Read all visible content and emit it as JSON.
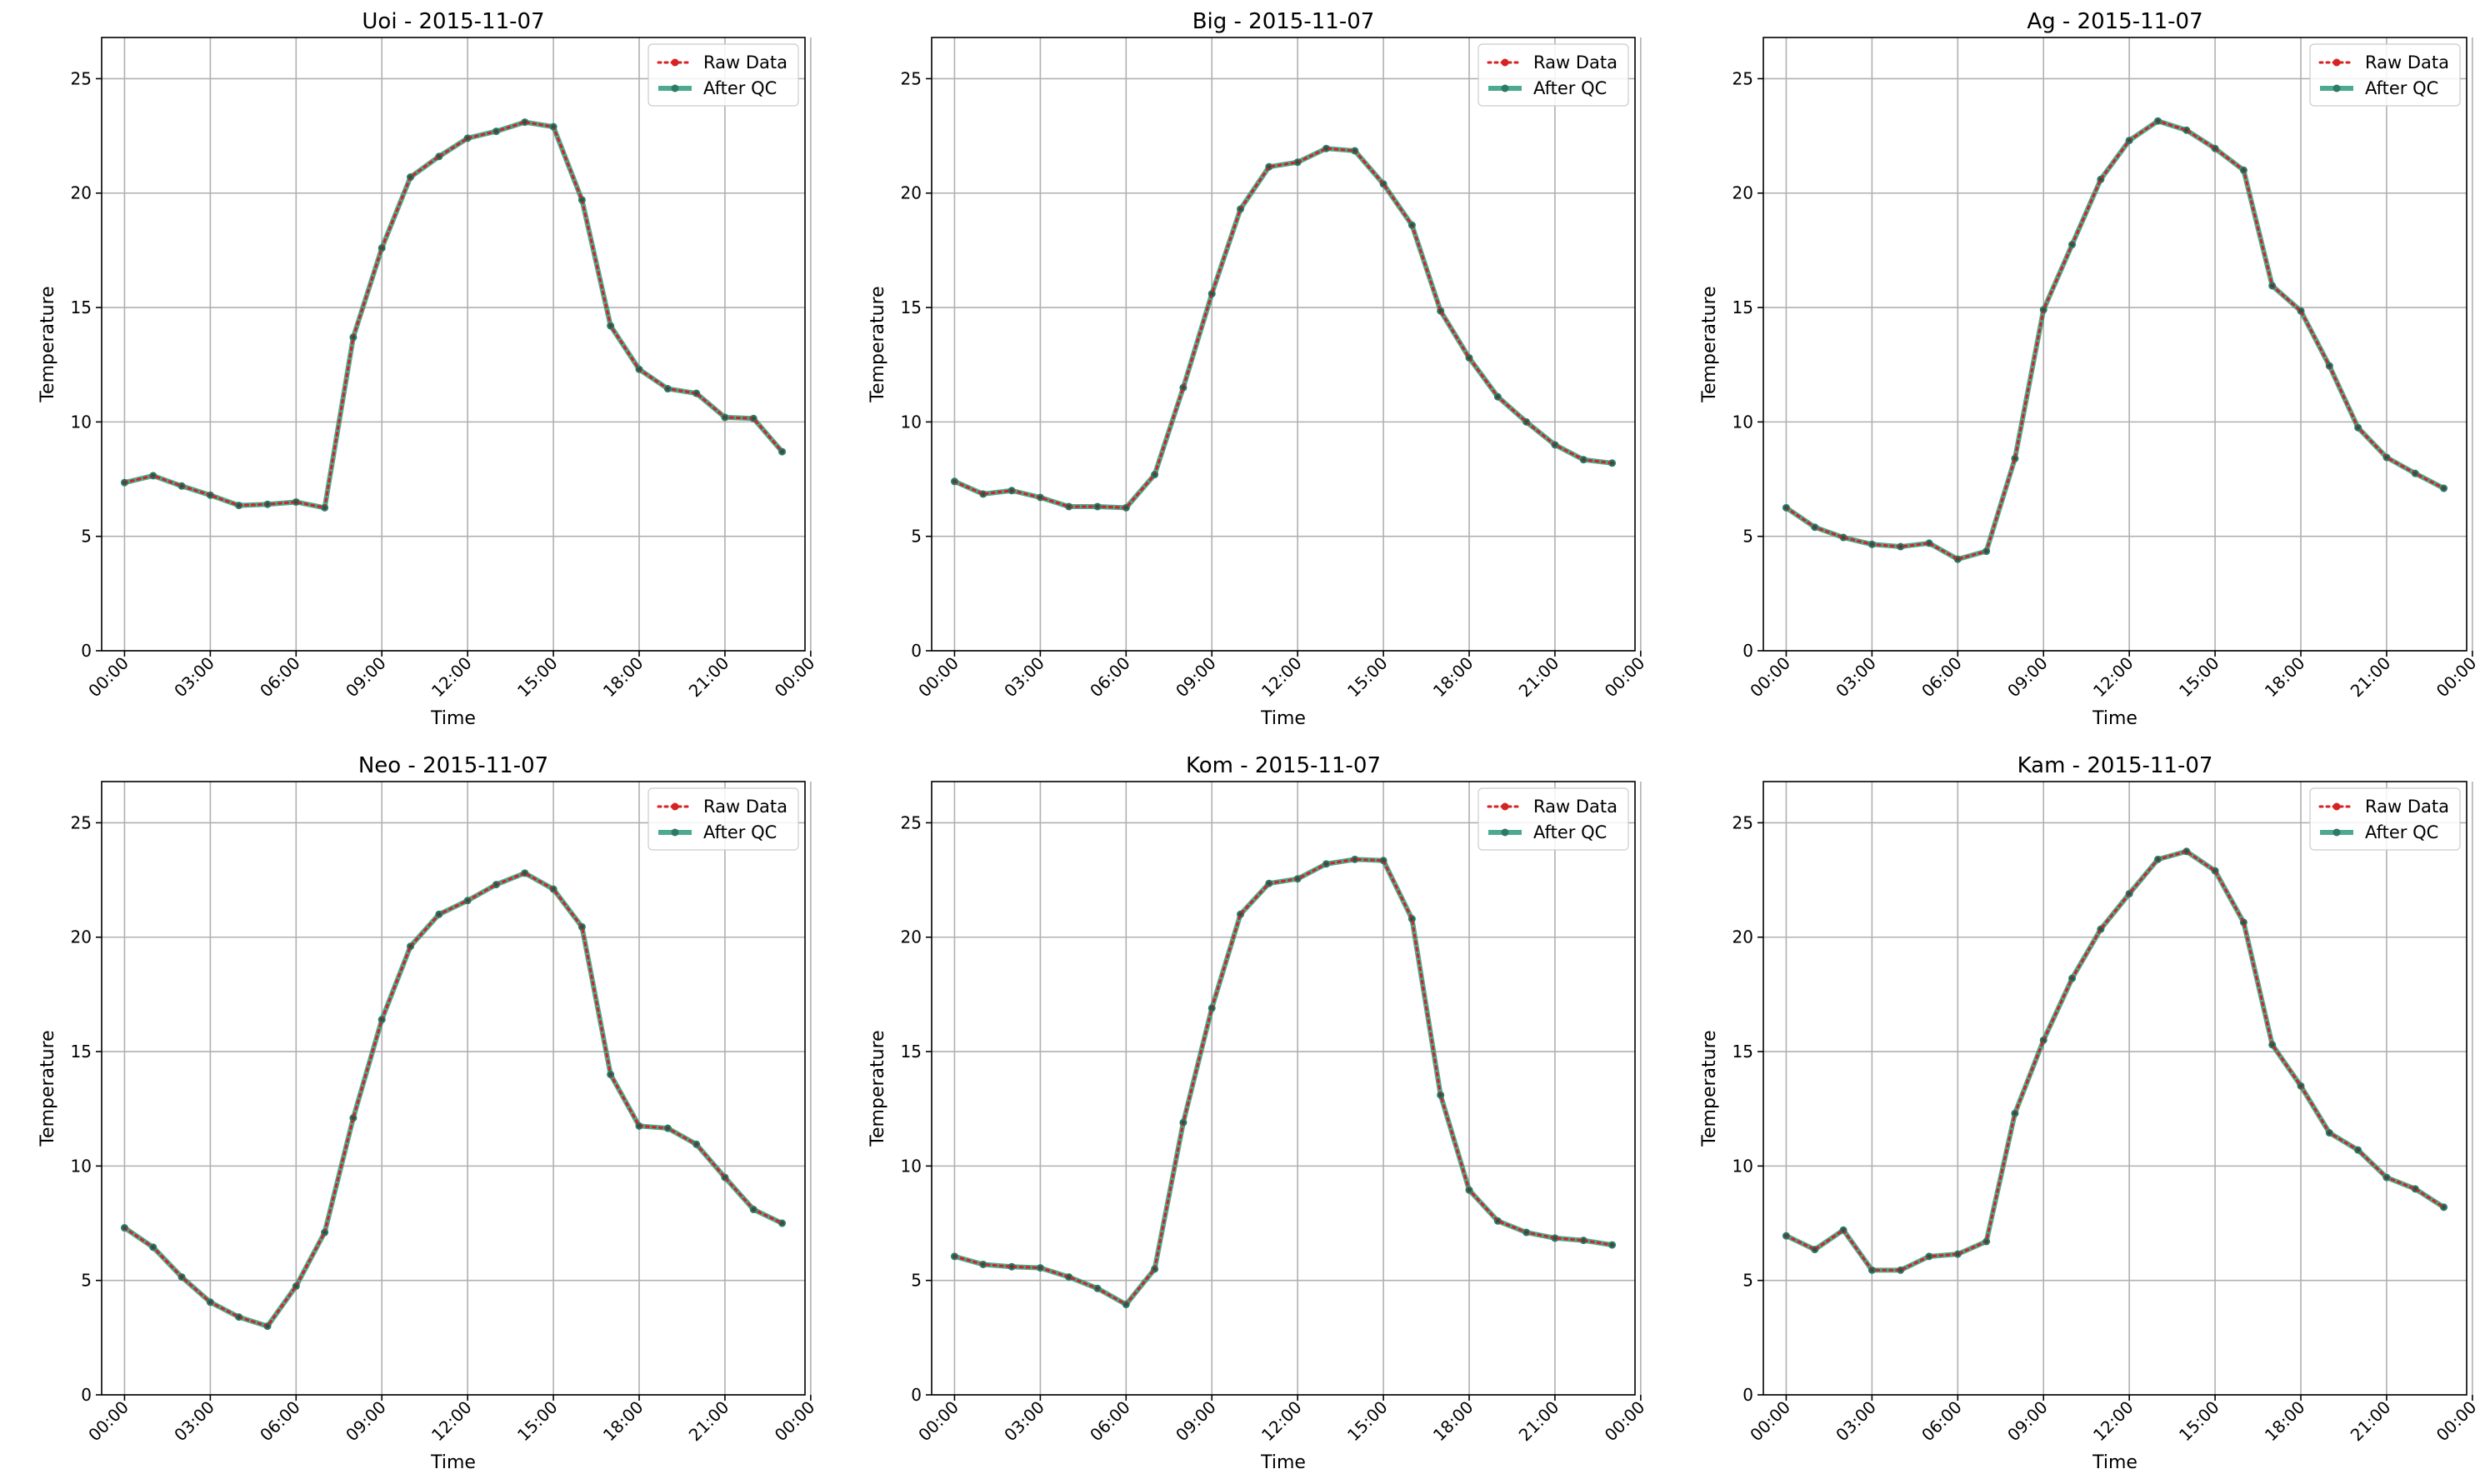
{
  "chart_data": [
    {
      "type": "line",
      "title": "Uoi - 2015-11-07",
      "xlabel": "Time",
      "ylabel": "Temperature",
      "ylim": [
        0,
        26.8
      ],
      "yticks": [
        0,
        5,
        10,
        15,
        20,
        25
      ],
      "xlim": [
        -0.8,
        23.8
      ],
      "xticks": [
        "00:00",
        "03:00",
        "06:00",
        "09:00",
        "12:00",
        "15:00",
        "18:00",
        "21:00",
        "00:00"
      ],
      "grid": true,
      "legend_position": "top-right",
      "x": [
        0,
        1,
        2,
        3,
        4,
        5,
        6,
        7,
        8,
        9,
        10,
        11,
        12,
        13,
        14,
        15,
        16,
        17,
        18,
        19,
        20,
        21,
        22,
        23
      ],
      "series": [
        {
          "name": "Raw Data",
          "style": "dotted-red",
          "values": [
            7.35,
            7.65,
            7.2,
            6.8,
            6.35,
            6.4,
            6.5,
            6.25,
            13.7,
            17.6,
            20.7,
            21.6,
            22.4,
            22.7,
            23.1,
            22.9,
            19.7,
            14.2,
            12.3,
            11.45,
            11.25,
            10.2,
            10.15,
            8.7
          ]
        },
        {
          "name": "After QC",
          "style": "solid-green",
          "values": [
            7.35,
            7.65,
            7.2,
            6.8,
            6.35,
            6.4,
            6.5,
            6.25,
            13.7,
            17.6,
            20.7,
            21.6,
            22.4,
            22.7,
            23.1,
            22.9,
            19.7,
            14.2,
            12.3,
            11.45,
            11.25,
            10.2,
            10.15,
            8.7
          ]
        }
      ]
    },
    {
      "type": "line",
      "title": "Big - 2015-11-07",
      "xlabel": "Time",
      "ylabel": "Temperature",
      "ylim": [
        0,
        26.8
      ],
      "yticks": [
        0,
        5,
        10,
        15,
        20,
        25
      ],
      "xlim": [
        -0.8,
        23.8
      ],
      "xticks": [
        "00:00",
        "03:00",
        "06:00",
        "09:00",
        "12:00",
        "15:00",
        "18:00",
        "21:00",
        "00:00"
      ],
      "grid": true,
      "legend_position": "top-right",
      "x": [
        0,
        1,
        2,
        3,
        4,
        5,
        6,
        7,
        8,
        9,
        10,
        11,
        12,
        13,
        14,
        15,
        16,
        17,
        18,
        19,
        20,
        21,
        22,
        23
      ],
      "series": [
        {
          "name": "Raw Data",
          "style": "dotted-red",
          "values": [
            7.4,
            6.85,
            7.0,
            6.7,
            6.3,
            6.3,
            6.25,
            7.7,
            11.5,
            15.6,
            19.3,
            21.15,
            21.35,
            21.95,
            21.85,
            20.4,
            18.6,
            14.85,
            12.8,
            11.1,
            10.0,
            9.0,
            8.35,
            8.2
          ]
        },
        {
          "name": "After QC",
          "style": "solid-green",
          "values": [
            7.4,
            6.85,
            7.0,
            6.7,
            6.3,
            6.3,
            6.25,
            7.7,
            11.5,
            15.6,
            19.3,
            21.15,
            21.35,
            21.95,
            21.85,
            20.4,
            18.6,
            14.85,
            12.8,
            11.1,
            10.0,
            9.0,
            8.35,
            8.2
          ]
        }
      ]
    },
    {
      "type": "line",
      "title": "Ag - 2015-11-07",
      "xlabel": "Time",
      "ylabel": "Temperature",
      "ylim": [
        0,
        26.8
      ],
      "yticks": [
        0,
        5,
        10,
        15,
        20,
        25
      ],
      "xlim": [
        -0.8,
        23.8
      ],
      "xticks": [
        "00:00",
        "03:00",
        "06:00",
        "09:00",
        "12:00",
        "15:00",
        "18:00",
        "21:00",
        "00:00"
      ],
      "grid": true,
      "legend_position": "top-right",
      "x": [
        0,
        1,
        2,
        3,
        4,
        5,
        6,
        7,
        8,
        9,
        10,
        11,
        12,
        13,
        14,
        15,
        16,
        17,
        18,
        19,
        20,
        21,
        22,
        23
      ],
      "series": [
        {
          "name": "Raw Data",
          "style": "dotted-red",
          "values": [
            6.25,
            5.4,
            4.95,
            4.65,
            4.55,
            4.7,
            4.0,
            4.35,
            8.4,
            14.9,
            17.75,
            20.6,
            22.3,
            23.15,
            22.75,
            21.95,
            21.0,
            15.95,
            14.85,
            12.45,
            9.75,
            8.45,
            7.75,
            7.1
          ]
        },
        {
          "name": "After QC",
          "style": "solid-green",
          "values": [
            6.25,
            5.4,
            4.95,
            4.65,
            4.55,
            4.7,
            4.0,
            4.35,
            8.4,
            14.9,
            17.75,
            20.6,
            22.3,
            23.15,
            22.75,
            21.95,
            21.0,
            15.95,
            14.85,
            12.45,
            9.75,
            8.45,
            7.75,
            7.1
          ]
        }
      ]
    },
    {
      "type": "line",
      "title": "Neo - 2015-11-07",
      "xlabel": "Time",
      "ylabel": "Temperature",
      "ylim": [
        0,
        26.8
      ],
      "yticks": [
        0,
        5,
        10,
        15,
        20,
        25
      ],
      "xlim": [
        -0.8,
        23.8
      ],
      "xticks": [
        "00:00",
        "03:00",
        "06:00",
        "09:00",
        "12:00",
        "15:00",
        "18:00",
        "21:00",
        "00:00"
      ],
      "grid": true,
      "legend_position": "top-right",
      "x": [
        0,
        1,
        2,
        3,
        4,
        5,
        6,
        7,
        8,
        9,
        10,
        11,
        12,
        13,
        14,
        15,
        16,
        17,
        18,
        19,
        20,
        21,
        22,
        23
      ],
      "series": [
        {
          "name": "Raw Data",
          "style": "dotted-red",
          "values": [
            7.3,
            6.45,
            5.15,
            4.05,
            3.4,
            3.0,
            4.75,
            7.1,
            12.1,
            16.4,
            19.6,
            21.0,
            21.6,
            22.3,
            22.8,
            22.1,
            20.45,
            14.0,
            11.75,
            11.65,
            10.95,
            9.5,
            8.1,
            7.5
          ]
        },
        {
          "name": "After QC",
          "style": "solid-green",
          "values": [
            7.3,
            6.45,
            5.15,
            4.05,
            3.4,
            3.0,
            4.75,
            7.1,
            12.1,
            16.4,
            19.6,
            21.0,
            21.6,
            22.3,
            22.8,
            22.1,
            20.45,
            14.0,
            11.75,
            11.65,
            10.95,
            9.5,
            8.1,
            7.5
          ]
        }
      ]
    },
    {
      "type": "line",
      "title": "Kom - 2015-11-07",
      "xlabel": "Time",
      "ylabel": "Temperature",
      "ylim": [
        0,
        26.8
      ],
      "yticks": [
        0,
        5,
        10,
        15,
        20,
        25
      ],
      "xlim": [
        -0.8,
        23.8
      ],
      "xticks": [
        "00:00",
        "03:00",
        "06:00",
        "09:00",
        "12:00",
        "15:00",
        "18:00",
        "21:00",
        "00:00"
      ],
      "grid": true,
      "legend_position": "top-right",
      "x": [
        0,
        1,
        2,
        3,
        4,
        5,
        6,
        7,
        8,
        9,
        10,
        11,
        12,
        13,
        14,
        15,
        16,
        17,
        18,
        19,
        20,
        21,
        22,
        23
      ],
      "series": [
        {
          "name": "Raw Data",
          "style": "dotted-red",
          "values": [
            6.05,
            5.7,
            5.6,
            5.55,
            5.15,
            4.65,
            3.95,
            5.5,
            11.9,
            16.9,
            21.0,
            22.35,
            22.55,
            23.2,
            23.4,
            23.35,
            20.8,
            13.1,
            8.95,
            7.6,
            7.1,
            6.85,
            6.75,
            6.55
          ]
        },
        {
          "name": "After QC",
          "style": "solid-green",
          "values": [
            6.05,
            5.7,
            5.6,
            5.55,
            5.15,
            4.65,
            3.95,
            5.5,
            11.9,
            16.9,
            21.0,
            22.35,
            22.55,
            23.2,
            23.4,
            23.35,
            20.8,
            13.1,
            8.95,
            7.6,
            7.1,
            6.85,
            6.75,
            6.55
          ]
        }
      ]
    },
    {
      "type": "line",
      "title": "Kam - 2015-11-07",
      "xlabel": "Time",
      "ylabel": "Temperature",
      "ylim": [
        0,
        26.8
      ],
      "yticks": [
        0,
        5,
        10,
        15,
        20,
        25
      ],
      "xlim": [
        -0.8,
        23.8
      ],
      "xticks": [
        "00:00",
        "03:00",
        "06:00",
        "09:00",
        "12:00",
        "15:00",
        "18:00",
        "21:00",
        "00:00"
      ],
      "grid": true,
      "legend_position": "top-right",
      "x": [
        0,
        1,
        2,
        3,
        4,
        5,
        6,
        7,
        8,
        9,
        10,
        11,
        12,
        13,
        14,
        15,
        16,
        17,
        18,
        19,
        20,
        21,
        22,
        23
      ],
      "series": [
        {
          "name": "Raw Data",
          "style": "dotted-red",
          "values": [
            6.95,
            6.35,
            7.2,
            5.45,
            5.45,
            6.05,
            6.15,
            6.7,
            12.3,
            15.5,
            18.2,
            20.35,
            21.9,
            23.4,
            23.75,
            22.9,
            20.65,
            15.3,
            13.5,
            11.45,
            10.7,
            9.5,
            9.0,
            8.2
          ]
        },
        {
          "name": "After QC",
          "style": "solid-green",
          "values": [
            6.95,
            6.35,
            7.2,
            5.45,
            5.45,
            6.05,
            6.15,
            6.7,
            12.3,
            15.5,
            18.2,
            20.35,
            21.9,
            23.4,
            23.75,
            22.9,
            20.65,
            15.3,
            13.5,
            11.45,
            10.7,
            9.5,
            9.0,
            8.2
          ]
        }
      ]
    }
  ]
}
